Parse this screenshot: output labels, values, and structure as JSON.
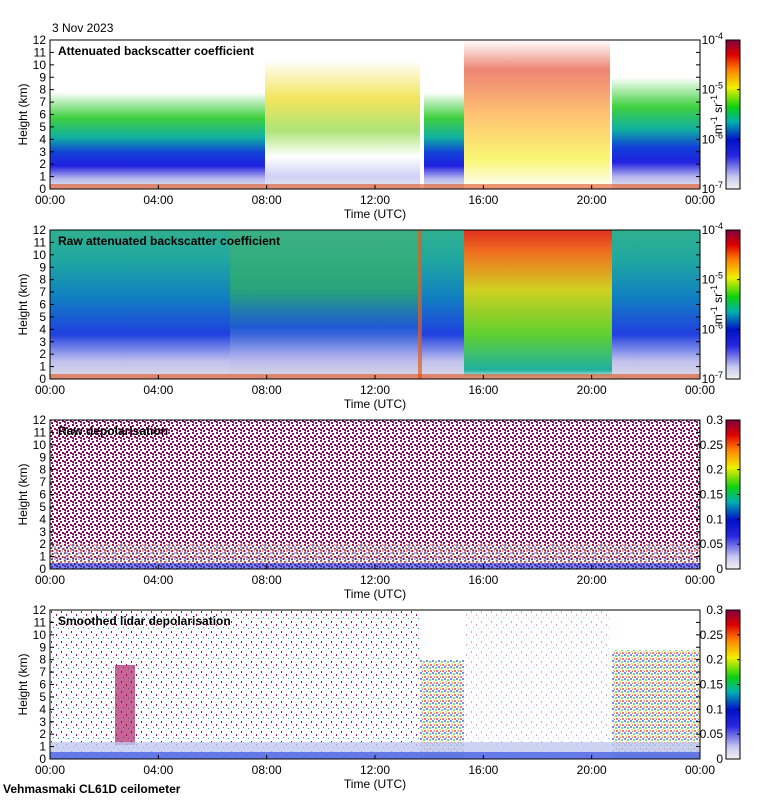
{
  "figure": {
    "date": "3 Nov 2023",
    "footer": "Vehmasmaki CL61D ceilometer"
  },
  "chart_data": [
    {
      "type": "heatmap",
      "title": "Attenuated backscatter coefficient",
      "xlabel": "Time (UTC)",
      "ylabel": "Height (km)",
      "x_ticks": [
        "00:00",
        "04:00",
        "08:00",
        "12:00",
        "16:00",
        "20:00",
        "00:00"
      ],
      "ylim": [
        0,
        12
      ],
      "y_ticks": [
        0,
        1,
        2,
        3,
        4,
        5,
        6,
        7,
        8,
        9,
        10,
        11,
        12
      ],
      "colorbar": {
        "scale": "log",
        "min": "10^-7",
        "max": "10^-4",
        "ticks": [
          {
            "base": "10",
            "exp": "-4"
          },
          {
            "base": "10",
            "exp": "-5"
          },
          {
            "base": "10",
            "exp": "-6"
          },
          {
            "base": "10",
            "exp": "-7"
          }
        ],
        "unit_main": "m",
        "unit_exp1": "-1",
        "unit_mid": " sr",
        "unit_exp2": "-1"
      }
    },
    {
      "type": "heatmap",
      "title": "Raw attenuated backscatter coefficient",
      "xlabel": "Time (UTC)",
      "ylabel": "Height (km)",
      "x_ticks": [
        "00:00",
        "04:00",
        "08:00",
        "12:00",
        "16:00",
        "20:00",
        "00:00"
      ],
      "ylim": [
        0,
        12
      ],
      "y_ticks": [
        0,
        1,
        2,
        3,
        4,
        5,
        6,
        7,
        8,
        9,
        10,
        11,
        12
      ],
      "colorbar": {
        "scale": "log",
        "min": "10^-7",
        "max": "10^-4",
        "ticks": [
          {
            "base": "10",
            "exp": "-4"
          },
          {
            "base": "10",
            "exp": "-5"
          },
          {
            "base": "10",
            "exp": "-6"
          },
          {
            "base": "10",
            "exp": "-7"
          }
        ],
        "unit_main": "m",
        "unit_exp1": "-1",
        "unit_mid": " sr",
        "unit_exp2": "-1"
      }
    },
    {
      "type": "heatmap",
      "title": "Raw depolarisation",
      "xlabel": "Time (UTC)",
      "ylabel": "Height (km)",
      "x_ticks": [
        "00:00",
        "04:00",
        "08:00",
        "12:00",
        "16:00",
        "20:00",
        "00:00"
      ],
      "ylim": [
        0,
        12
      ],
      "y_ticks": [
        0,
        1,
        2,
        3,
        4,
        5,
        6,
        7,
        8,
        9,
        10,
        11,
        12
      ],
      "colorbar": {
        "scale": "linear",
        "min": 0,
        "max": 0.3,
        "ticks": [
          "0.3",
          "0.25",
          "0.2",
          "0.15",
          "0.1",
          "0.05",
          "0"
        ]
      }
    },
    {
      "type": "heatmap",
      "title": "Smoothed lidar depolarisation",
      "xlabel": "Time (UTC)",
      "ylabel": "Height (km)",
      "x_ticks": [
        "00:00",
        "04:00",
        "08:00",
        "12:00",
        "16:00",
        "20:00",
        "00:00"
      ],
      "ylim": [
        0,
        12
      ],
      "y_ticks": [
        0,
        1,
        2,
        3,
        4,
        5,
        6,
        7,
        8,
        9,
        10,
        11,
        12
      ],
      "colorbar": {
        "scale": "linear",
        "min": 0,
        "max": 0.3,
        "ticks": [
          "0.3",
          "0.25",
          "0.2",
          "0.15",
          "0.1",
          "0.05",
          "0"
        ]
      }
    }
  ]
}
